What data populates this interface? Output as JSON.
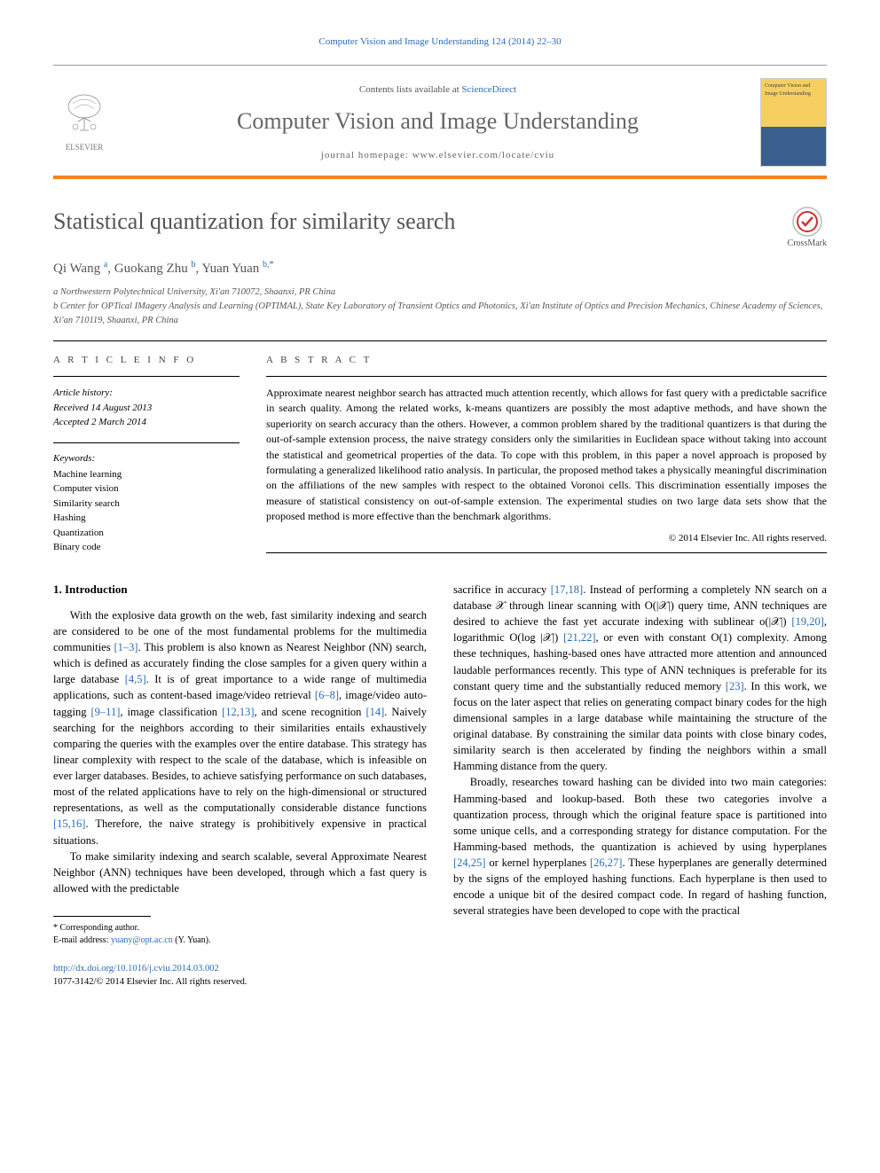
{
  "top_reference": "Computer Vision and Image Understanding 124 (2014) 22–30",
  "header": {
    "contents_prefix": "Contents lists available at ",
    "contents_link": "ScienceDirect",
    "journal_name": "Computer Vision and Image Understanding",
    "homepage_prefix": "journal homepage: ",
    "homepage_url": "www.elsevier.com/locate/cviu",
    "publisher": "ELSEVIER",
    "cover_text": "Computer Vision and Image Understanding"
  },
  "colors": {
    "orange_rule": "#f58220",
    "link": "#2a6bb8",
    "muted": "#666",
    "cover_top": "#f5d060",
    "cover_bottom": "#3a5f8f"
  },
  "paper": {
    "title": "Statistical quantization for similarity search",
    "crossmark_label": "CrossMark",
    "authors_html": "Qi Wang <sup>a</sup>, Guokang Zhu <sup>b</sup>, Yuan Yuan <sup>b,*</sup>",
    "affiliations": [
      "a Northwestern Polytechnical University, Xi'an 710072, Shaanxi, PR China",
      "b Center for OPTical IMagery Analysis and Learning (OPTIMAL), State Key Laboratory of Transient Optics and Photonics, Xi'an Institute of Optics and Precision Mechanics, Chinese Academy of Sciences, Xi'an 710119, Shaanxi, PR China"
    ]
  },
  "article_info": {
    "heading": "A R T I C L E   I N F O",
    "history_label": "Article history:",
    "received": "Received 14 August 2013",
    "accepted": "Accepted 2 March 2014",
    "keywords_label": "Keywords:",
    "keywords": [
      "Machine learning",
      "Computer vision",
      "Similarity search",
      "Hashing",
      "Quantization",
      "Binary code"
    ]
  },
  "abstract": {
    "heading": "A B S T R A C T",
    "text": "Approximate nearest neighbor search has attracted much attention recently, which allows for fast query with a predictable sacrifice in search quality. Among the related works, k-means quantizers are possibly the most adaptive methods, and have shown the superiority on search accuracy than the others. However, a common problem shared by the traditional quantizers is that during the out-of-sample extension process, the naive strategy considers only the similarities in Euclidean space without taking into account the statistical and geometrical properties of the data. To cope with this problem, in this paper a novel approach is proposed by formulating a generalized likelihood ratio analysis. In particular, the proposed method takes a physically meaningful discrimination on the affiliations of the new samples with respect to the obtained Voronoi cells. This discrimination essentially imposes the measure of statistical consistency on out-of-sample extension. The experimental studies on two large data sets show that the proposed method is more effective than the benchmark algorithms.",
    "copyright": "© 2014 Elsevier Inc. All rights reserved."
  },
  "body": {
    "section1_heading": "1. Introduction",
    "col1_p1": "With the explosive data growth on the web, fast similarity indexing and search are considered to be one of the most fundamental problems for the multimedia communities [1–3]. This problem is also known as Nearest Neighbor (NN) search, which is defined as accurately finding the close samples for a given query within a large database [4,5]. It is of great importance to a wide range of multimedia applications, such as content-based image/video retrieval [6–8], image/video auto-tagging [9–11], image classification [12,13], and scene recognition [14]. Naively searching for the neighbors according to their similarities entails exhaustively comparing the queries with the examples over the entire database. This strategy has linear complexity with respect to the scale of the database, which is infeasible on ever larger databases. Besides, to achieve satisfying performance on such databases, most of the related applications have to rely on the high-dimensional or structured representations, as well as the computationally considerable distance functions [15,16]. Therefore, the naive strategy is prohibitively expensive in practical situations.",
    "col1_p2": "To make similarity indexing and search scalable, several Approximate Nearest Neighbor (ANN) techniques have been developed, through which a fast query is allowed with the predictable",
    "col2_p1": "sacrifice in accuracy [17,18]. Instead of performing a completely NN search on a database 𝒳 through linear scanning with O(|𝒳|) query time, ANN techniques are desired to achieve the fast yet accurate indexing with sublinear o(|𝒳|) [19,20], logarithmic O(log |𝒳|) [21,22], or even with constant O(1) complexity. Among these techniques, hashing-based ones have attracted more attention and announced laudable performances recently. This type of ANN techniques is preferable for its constant query time and the substantially reduced memory [23]. In this work, we focus on the later aspect that relies on generating compact binary codes for the high dimensional samples in a large database while maintaining the structure of the original database. By constraining the similar data points with close binary codes, similarity search is then accelerated by finding the neighbors within a small Hamming distance from the query.",
    "col2_p2": "Broadly, researches toward hashing can be divided into two main categories: Hamming-based and lookup-based. Both these two categories involve a quantization process, through which the original feature space is partitioned into some unique cells, and a corresponding strategy for distance computation. For the Hamming-based methods, the quantization is achieved by using hyperplanes [24,25] or kernel hyperplanes [26,27]. These hyperplanes are generally determined by the signs of the employed hashing functions. Each hyperplane is then used to encode a unique bit of the desired compact code. In regard of hashing function, several strategies have been developed to cope with the practical"
  },
  "footnotes": {
    "corresponding": "* Corresponding author.",
    "email_label": "E-mail address: ",
    "email": "yuany@opt.ac.cn",
    "email_suffix": " (Y. Yuan)."
  },
  "bottom": {
    "doi": "http://dx.doi.org/10.1016/j.cviu.2014.03.002",
    "issn": "1077-3142/© 2014 Elsevier Inc. All rights reserved."
  }
}
